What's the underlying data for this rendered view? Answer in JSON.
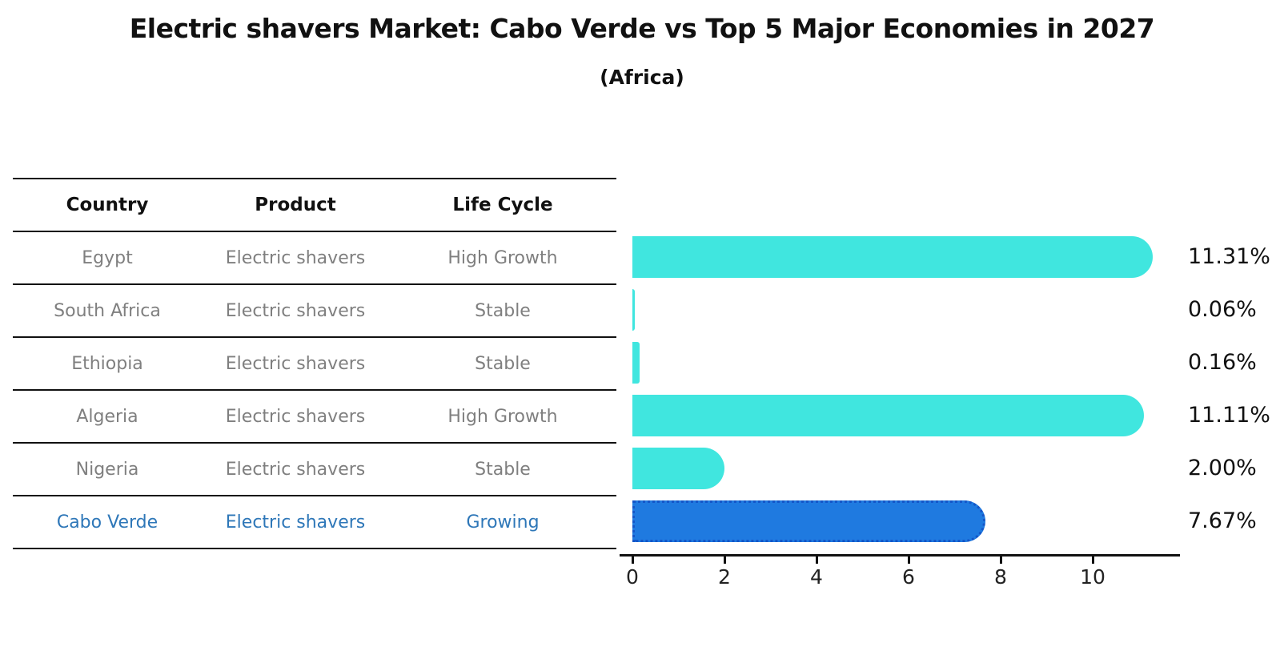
{
  "title": "Electric shavers Market: Cabo Verde vs Top 5 Major Economies in 2027",
  "subtitle": "(Africa)",
  "table": {
    "headers": [
      "Country",
      "Product",
      "Life Cycle"
    ],
    "rows": [
      {
        "country": "Egypt",
        "product": "Electric shavers",
        "life_cycle": "High Growth",
        "highlight": false
      },
      {
        "country": "South Africa",
        "product": "Electric shavers",
        "life_cycle": "Stable",
        "highlight": false
      },
      {
        "country": "Ethiopia",
        "product": "Electric shavers",
        "life_cycle": "Stable",
        "highlight": false
      },
      {
        "country": "Algeria",
        "product": "Electric shavers",
        "life_cycle": "High Growth",
        "highlight": false
      },
      {
        "country": "Nigeria",
        "product": "Electric shavers",
        "life_cycle": "Stable",
        "highlight": false
      },
      {
        "country": "Cabo Verde",
        "product": "Electric shavers",
        "life_cycle": "Growing",
        "highlight": true
      }
    ]
  },
  "chart_data": {
    "type": "bar",
    "orientation": "horizontal",
    "title": "Electric shavers Market: Cabo Verde vs Top 5 Major Economies in 2027 (Africa)",
    "categories": [
      "Egypt",
      "South Africa",
      "Ethiopia",
      "Algeria",
      "Nigeria",
      "Cabo Verde"
    ],
    "values": [
      11.31,
      0.06,
      0.16,
      11.11,
      2.0,
      7.67
    ],
    "value_labels": [
      "11.31%",
      "0.06%",
      "0.16%",
      "11.11%",
      "2.00%",
      "7.67%"
    ],
    "xticks": [
      "0",
      "2",
      "4",
      "6",
      "8",
      "10"
    ],
    "xtick_values": [
      0,
      2,
      4,
      6,
      8,
      10
    ],
    "xlim": [
      0,
      11.85
    ],
    "grid": false,
    "legend": false,
    "bar_color": "#40E6DF",
    "highlight_bar_color": "#1F7AE0",
    "highlight_border_color": "#1456C8",
    "highlight_index": 5
  },
  "colors": {
    "text_primary": "#111111",
    "table_text": "#7F7F7F",
    "highlight_text": "#2E77B8",
    "background": "#FFFFFF"
  }
}
